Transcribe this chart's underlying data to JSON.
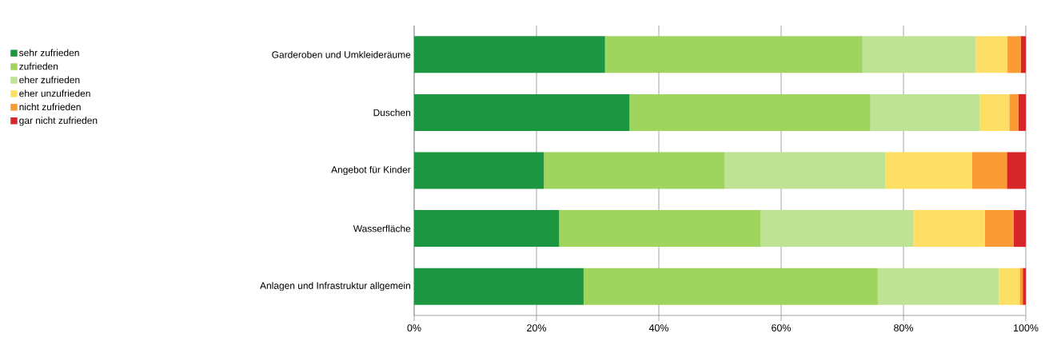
{
  "chart_data": {
    "type": "bar",
    "orientation": "horizontal",
    "stacked": true,
    "grid": "x",
    "legend": "left",
    "categories": [
      "Garderoben und Umkleideräume",
      "Duschen",
      "Angebot für Kinder",
      "Wasserfläche",
      "Anlagen und Infrastruktur allgemein"
    ],
    "xlim": [
      0,
      100
    ],
    "xticks": [
      {
        "value": 0,
        "label": "0%"
      },
      {
        "value": 20,
        "label": "20%"
      },
      {
        "value": 40,
        "label": "40%"
      },
      {
        "value": 60,
        "label": "60%"
      },
      {
        "value": 80,
        "label": "80%"
      },
      {
        "value": 100,
        "label": "100%"
      }
    ],
    "series": [
      {
        "name": "sehr zufrieden",
        "color": "#1c9641",
        "values": [
          31.2,
          35.2,
          21.2,
          23.7,
          27.7
        ]
      },
      {
        "name": "zufrieden",
        "color": "#9fd55e",
        "values": [
          42.1,
          39.4,
          29.6,
          32.9,
          48.1
        ]
      },
      {
        "name": "eher zufrieden",
        "color": "#bfe395",
        "values": [
          18.5,
          17.9,
          26.2,
          25.0,
          19.8
        ]
      },
      {
        "name": "eher unzufrieden",
        "color": "#fddf66",
        "values": [
          5.2,
          4.8,
          14.2,
          11.7,
          3.4
        ]
      },
      {
        "name": "nicht zufrieden",
        "color": "#fb9b33",
        "values": [
          2.2,
          1.5,
          5.7,
          4.7,
          0.5
        ]
      },
      {
        "name": "gar nicht zufrieden",
        "color": "#d7262a",
        "values": [
          0.8,
          1.2,
          3.1,
          2.0,
          0.5
        ]
      }
    ]
  }
}
